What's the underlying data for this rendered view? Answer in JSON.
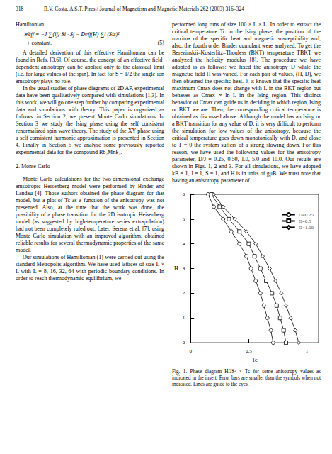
{
  "header": {
    "page": "318",
    "running_title": "B.V. Costa, A.S.T. Pires / Journal of Magnetism and Magnetic Materials 262 (2003) 316–324"
  },
  "left_column": [
    {
      "kind": "plain",
      "text": "Hamiltonian"
    },
    {
      "kind": "equation",
      "text": "ℋeff = −J ∑⟨ij⟩ Si · Sj − Deff(H) ∑i (Siz)²"
    },
    {
      "kind": "equation_cont",
      "text": "+ constant.",
      "number": "(5)"
    },
    {
      "kind": "p",
      "text": "A detailed derivation of this effective Hamiltonian can be found in Refs. [3,6]. Of course, the concept of an effective field-dependent anisotropy can be applied only to the classical limit (i.e. for large values of the spin). In fact for S = 1/2 the single-ion anisotropy plays no role."
    },
    {
      "kind": "p",
      "text": "In the usual studies of phase diagrams of 2D AF, experimental data have been qualitatively compared with simulations [1,3]. In this work, we will go one step further by comparing experimental data and simulations with theory. This paper is organized as follows: in Section 2, we present Monte Carlo simulations. In Section 3 we study the Ising phase using the self consistent renormalized spin-wave theory. The study of the XY phase using a self consistent harmonic approximation is presented in Section 4. Finally in Section 5 we analyse some previously reported experimental data for the compound Rb₂MnF₄."
    },
    {
      "kind": "heading",
      "text": "2. Monte Carlo"
    },
    {
      "kind": "p",
      "text": "Monte Carlo calculations for the two-dimensional exchange anisotropic Heisenberg model were performed by Binder and Landau [4]. Those authors obtained the phase diagram for that model, but a plot of Tc as a function of the anisotropy was not presented. Also, at the time that the work was done, the possibility of a phase transition for the 2D isotropic Heisenberg model (as suggested by high-temperature series extrapolation) had not been completely ruled out. Later, Serena et al. [7], using Monte Carlo simulation with an improved algorithm, obtained reliable results for several thermodynamic properties of the same model."
    },
    {
      "kind": "p",
      "text": "Our simulations of Hamiltonian (1) were carried out using the standard Metropolis algorithm. We have used lattices of size L × L with L = 8, 16, 32, 64 with periodic boundary conditions. In order to reach thermodynamic equilibrium, we"
    }
  ],
  "right_column": [
    {
      "kind": "plain",
      "text": "performed long runs of size 100 × L × L. In order to extract the critical temperature Tc in the Ising phase, the position of the maxima of the specific heat and magnetic susceptibility and, also, the fourth order Binder cumulant were analyzed. To get the Berezinskii–Kosterlitz–Thouless (BKT) temperature TBKT we analyzed the helicity modulus [8]. The procedure we have adopted is as follows: we fixed the anisotropy D while the magnetic field H was varied. For each pair of values, (H, D), we then obtained the specific heat. It is known that the specific heat maximum Cmax does not change with L in the BKT region but behaves as Cmax ∝ ln L in the Ising region. This distinct behavior of Cmax can guide us in deciding in which region, Ising or BKT we are. Then, the corresponding critical temperature is obtained as discussed above. Although the model has an Ising or a BKT transition for any value of D, it is very difficult to perform the simulation for low values of the anisotropy, because the critical temperature goes down monotonically with D, and close to T = 0 the system suffers of a strong slowing down. For this reason, we have used the following values for the anisotropy parameter, D/J = 0.25, 0.50, 1.0, 5.0 and 10.0. Our results are shown in Figs. 1, 2 and 3. For all simulations, we have adopted kB = 1, J = 1, S = 1, and H is in units of gμB. We must note that having an anisotropy parameter of"
    }
  ],
  "figure_caption": "Fig. 1. Phase diagram H/JS² × Tc for some anisotropy values as indicated in the insert. Error bars are smaller than the symbols when not indicated. Lines are guide to the eyes.",
  "chart_data": {
    "type": "line",
    "x_label": "Tc",
    "y_label": "H",
    "xlim": [
      0,
      1.1
    ],
    "xticks": [
      0,
      0.5,
      1
    ],
    "ylim": [
      0,
      6
    ],
    "yticks": [
      0,
      1,
      2,
      3,
      4,
      5,
      6
    ],
    "grid": false,
    "legend": "top-right",
    "series": [
      {
        "name": "D=0.25",
        "color": "#000000",
        "marker": "circle",
        "line_style": "solid",
        "x": [
          0.15,
          0.2,
          0.28,
          0.35,
          0.42,
          0.48,
          0.52,
          0.56,
          0.6,
          0.63,
          0.66,
          0.69,
          0.71
        ],
        "values": [
          6,
          5.5,
          5,
          4.5,
          4,
          3.5,
          3,
          2.5,
          2,
          1.5,
          1,
          0.5,
          0
        ]
      },
      {
        "name": "D=0.5",
        "color": "#000000",
        "marker": "square",
        "line_style": "solid",
        "x": [
          0.18,
          0.25,
          0.33,
          0.42,
          0.5,
          0.55,
          0.6,
          0.65,
          0.7,
          0.74,
          0.77,
          0.8,
          0.82
        ],
        "values": [
          6,
          5.5,
          5,
          4.5,
          4,
          3.5,
          3,
          2.5,
          2,
          1.5,
          1,
          0.5,
          0
        ]
      },
      {
        "name": "D=1.00",
        "color": "#000000",
        "marker": "diamond",
        "line_style": "solid",
        "x": [
          0.2,
          0.28,
          0.38,
          0.48,
          0.56,
          0.62,
          0.68,
          0.73,
          0.78,
          0.82,
          0.86,
          0.9,
          0.93
        ],
        "values": [
          6,
          5.5,
          5,
          4.5,
          4,
          3.5,
          3,
          2.5,
          2,
          1.5,
          1,
          0.5,
          0
        ]
      }
    ]
  }
}
